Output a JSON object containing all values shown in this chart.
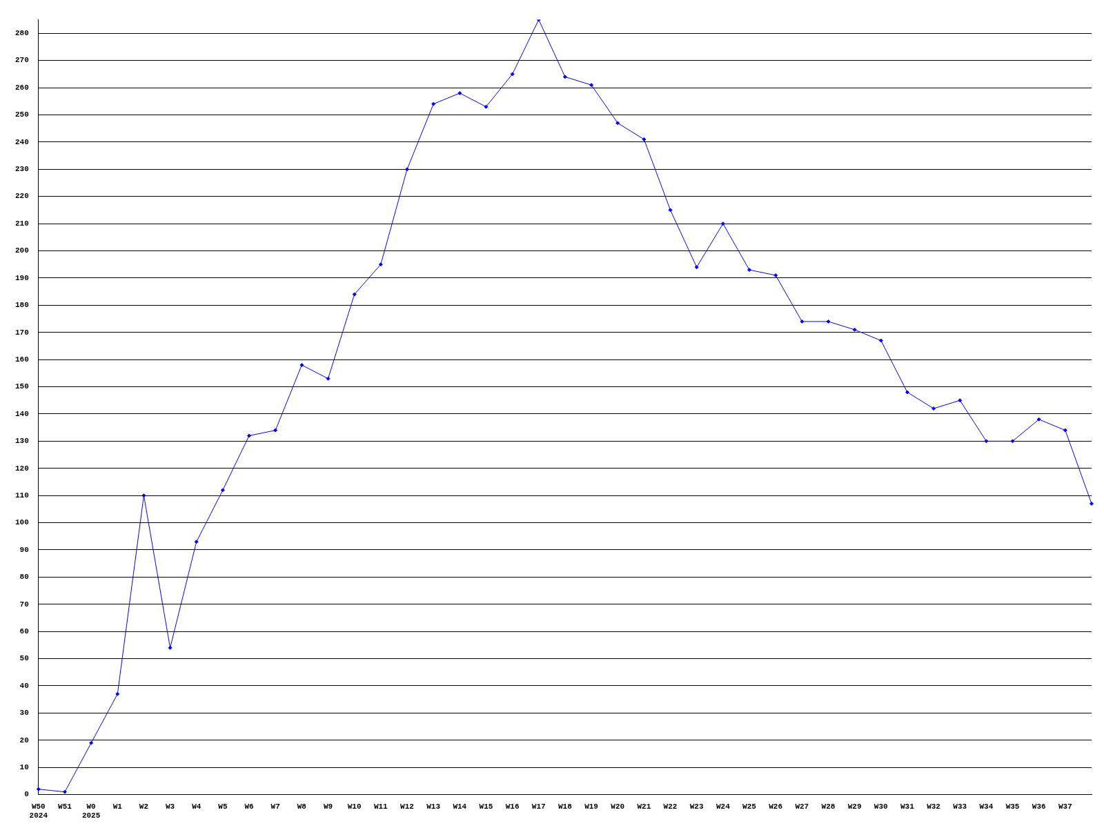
{
  "chart_data": {
    "type": "line",
    "categories": [
      "W50\n2024",
      "W51",
      "W0\n2025",
      "W1",
      "W2",
      "W3",
      "W4",
      "W5",
      "W6",
      "W7",
      "W8",
      "W9",
      "W10",
      "W11",
      "W12",
      "W13",
      "W14",
      "W15",
      "W16",
      "W17",
      "W18",
      "W19",
      "W20",
      "W21",
      "W22",
      "W23",
      "W24",
      "W25",
      "W26",
      "W27",
      "W28",
      "W29",
      "W30",
      "W31",
      "W32",
      "W33",
      "W34",
      "W35",
      "W36",
      "W37",
      null
    ],
    "series": [
      {
        "color": "#0000ff",
        "values": [
          2,
          1,
          19,
          37,
          110,
          54,
          93,
          112,
          132,
          134,
          158,
          153,
          184,
          195,
          230,
          254,
          258,
          253,
          265,
          285,
          264,
          261,
          247,
          241,
          215,
          194,
          210,
          193,
          191,
          174,
          174,
          171,
          167,
          148,
          142,
          145,
          130,
          130,
          138,
          134,
          107
        ]
      }
    ],
    "ylim": [
      0,
      285
    ],
    "yticks": [
      0,
      10,
      20,
      30,
      40,
      50,
      60,
      70,
      80,
      90,
      100,
      110,
      120,
      130,
      140,
      150,
      160,
      170,
      180,
      190,
      200,
      210,
      220,
      230,
      240,
      250,
      260,
      270,
      280
    ],
    "grid": "y",
    "legend": false,
    "marker": "diamond",
    "line_style": "solid"
  }
}
